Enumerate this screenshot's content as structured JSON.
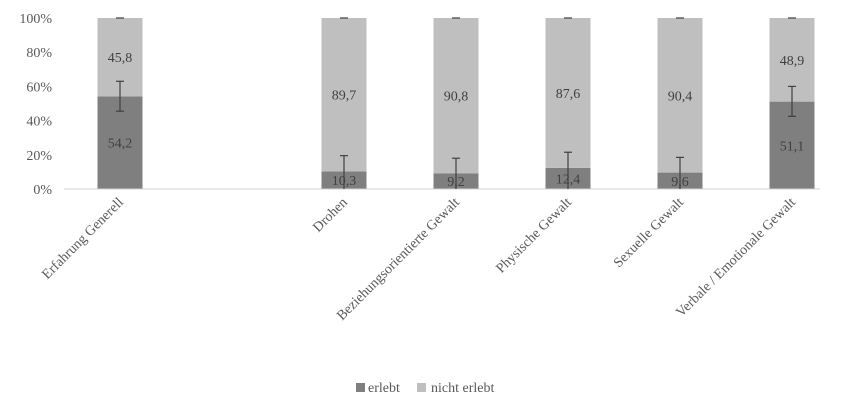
{
  "chart_data": {
    "type": "bar",
    "stacked": true,
    "percent": true,
    "categories": [
      "Erfahrung Generell",
      "",
      "Drohen",
      "Beziehungsorientierte Gewalt",
      "Physische Gewalt",
      "Sexuelle Gewalt",
      "Verbale / Emotionale Gewalt"
    ],
    "series": [
      {
        "name": "erlebt",
        "color": "#7f7f7f",
        "values": [
          54.2,
          null,
          10.3,
          9.2,
          12.4,
          9.6,
          51.1
        ],
        "labels": [
          "54,2",
          "",
          "10,3",
          "9,2",
          "12,4",
          "9,6",
          "51,1"
        ],
        "error_bars": [
          [
            45.5,
            63.0
          ],
          null,
          [
            0,
            19.5
          ],
          [
            0,
            18.0
          ],
          [
            0,
            21.5
          ],
          [
            0,
            18.5
          ],
          [
            42.5,
            60.0
          ]
        ]
      },
      {
        "name": "nicht erlebt",
        "color": "#bfbfbf",
        "values": [
          45.8,
          null,
          89.7,
          90.8,
          87.6,
          90.4,
          48.9
        ],
        "labels": [
          "45,8",
          "",
          "89,7",
          "90,8",
          "87,6",
          "90,4",
          "48,9"
        ]
      }
    ],
    "ylim": [
      0,
      100
    ],
    "yticks": [
      0,
      20,
      40,
      60,
      80,
      100
    ],
    "ytick_labels": [
      "0%",
      "20%",
      "40%",
      "60%",
      "80%",
      "100%"
    ],
    "grid": false,
    "legend": "bottom",
    "title": "",
    "xlabel": "",
    "ylabel": ""
  }
}
